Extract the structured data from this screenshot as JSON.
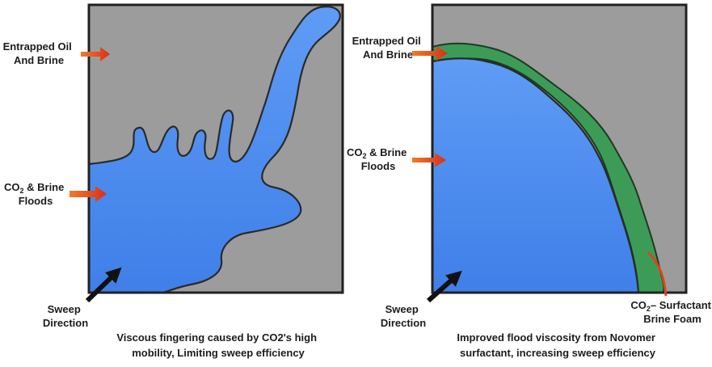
{
  "left_panel": {
    "entrapped_label": [
      "Entrapped Oil",
      "And Brine"
    ],
    "floods_label": {
      "line1_prefix": "CO",
      "line1_subscript": "2",
      "line1_suffix": " & Brine",
      "line2": "Floods"
    },
    "sweep_label": [
      "Sweep",
      "Direction"
    ],
    "caption": [
      "Viscous fingering caused by CO2's high",
      "mobility, Limiting sweep efficiency"
    ]
  },
  "right_panel": {
    "entrapped_label": [
      "Entrapped Oil",
      "And Brine"
    ],
    "floods_label": {
      "line1_prefix": "CO",
      "line1_subscript": "2",
      "line1_suffix": " & Brine",
      "line2": "Floods"
    },
    "sweep_label": [
      "Sweep",
      "Direction"
    ],
    "foam_label": {
      "line1_prefix": "CO",
      "line1_subscript": "2",
      "line1_suffix": "– Surfactant",
      "line2": "Brine Foam"
    },
    "caption": [
      "Improved flood viscosity from Novomer",
      "surfactant, increasing sweep efficiency"
    ]
  },
  "colors": {
    "rock_gray": "#9c9c9c",
    "flood_blue": "#4a8cf0",
    "foam_green": "#3c9c57",
    "indicator_red": "#e0421c",
    "sweep_arrow": "#111111"
  }
}
